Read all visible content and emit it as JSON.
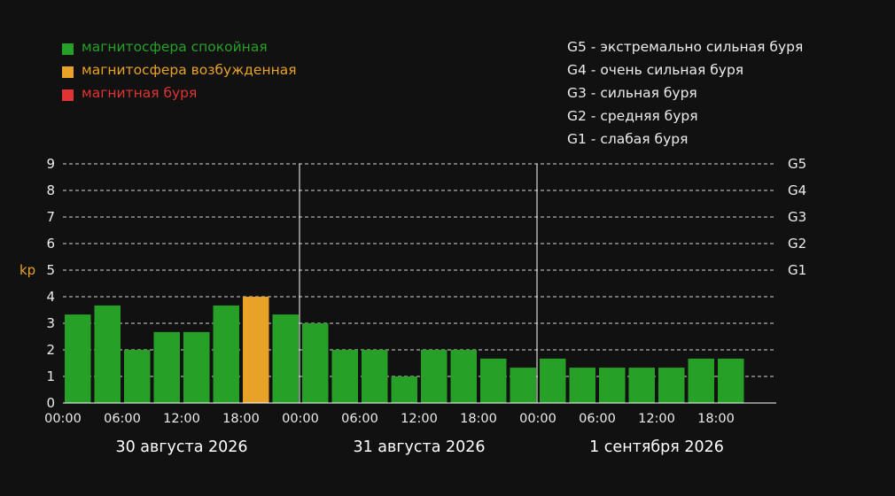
{
  "legend": [
    {
      "label": "магнитосфера спокойная",
      "color": "#27a027"
    },
    {
      "label": "магнитосфера возбужденная",
      "color": "#e8a228"
    },
    {
      "label": "магнитная буря",
      "color": "#e03434"
    }
  ],
  "storm_scale": [
    {
      "label": "G5 - экстремально сильная буря"
    },
    {
      "label": "G4 - очень сильная буря"
    },
    {
      "label": "G3 - сильная буря"
    },
    {
      "label": "G2 - средняя буря"
    },
    {
      "label": "G1 - слабая буря"
    }
  ],
  "chart_data": {
    "type": "bar",
    "ylabel": "kp",
    "ylim": [
      0,
      9
    ],
    "yticks": [
      "0",
      "1",
      "2",
      "3",
      "4",
      "5",
      "6",
      "7",
      "8",
      "9"
    ],
    "g_levels": [
      {
        "label": "G1",
        "kp": 5
      },
      {
        "label": "G2",
        "kp": 6
      },
      {
        "label": "G3",
        "kp": 7
      },
      {
        "label": "G4",
        "kp": 8
      },
      {
        "label": "G5",
        "kp": 9
      }
    ],
    "days": [
      {
        "date": "30 августа 2026",
        "ticks": [
          "00:00",
          "06:00",
          "12:00",
          "18:00"
        ]
      },
      {
        "date": "31 августа 2026",
        "ticks": [
          "00:00",
          "06:00",
          "12:00",
          "18:00"
        ]
      },
      {
        "date": "1 сентября 2026",
        "ticks": [
          "00:00",
          "06:00",
          "12:00",
          "18:00"
        ]
      }
    ],
    "values": [
      3.33,
      3.67,
      2,
      2.67,
      2.67,
      3.67,
      4,
      3.33,
      3,
      2,
      2,
      1,
      2,
      2,
      1.67,
      1.33,
      1.67,
      1.33,
      1.33,
      1.33,
      1.33,
      1.67,
      1.67
    ],
    "colors": [
      "#27a027",
      "#27a027",
      "#27a027",
      "#27a027",
      "#27a027",
      "#27a027",
      "#e8a228",
      "#27a027",
      "#27a027",
      "#27a027",
      "#27a027",
      "#27a027",
      "#27a027",
      "#27a027",
      "#27a027",
      "#27a027",
      "#27a027",
      "#27a027",
      "#27a027",
      "#27a027",
      "#27a027",
      "#27a027",
      "#27a027"
    ],
    "grid": true,
    "legend_position": "top-left"
  }
}
